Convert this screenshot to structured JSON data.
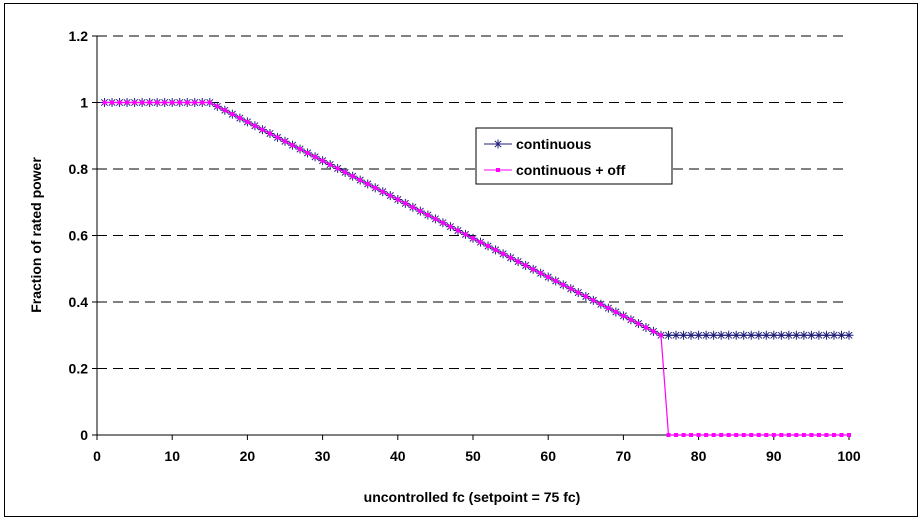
{
  "chart_data": {
    "type": "line",
    "title": "",
    "xlabel": "uncontrolled fc (setpoint = 75 fc)",
    "ylabel": "Fraction of rated power",
    "xlim": [
      0,
      100
    ],
    "ylim": [
      0,
      1.2
    ],
    "x_ticks": [
      0,
      10,
      20,
      30,
      40,
      50,
      60,
      70,
      80,
      90,
      100
    ],
    "y_ticks": [
      0,
      0.2,
      0.4,
      0.6,
      0.8,
      1,
      1.2
    ],
    "x_tick_labels": [
      "0",
      "10",
      "20",
      "30",
      "40",
      "50",
      "60",
      "70",
      "80",
      "90",
      "100"
    ],
    "y_tick_labels": [
      "0",
      "0.2",
      "0.4",
      "0.6",
      "0.8",
      "1",
      "1.2"
    ],
    "grid": "horizontal dashed",
    "legend_position": "upper-right",
    "x_range": [
      1,
      100
    ],
    "series": [
      {
        "name": "continuous",
        "color": "#1f1f7a",
        "marker": "asterisk",
        "description_points": [
          [
            1,
            1.0
          ],
          [
            15,
            1.0
          ],
          [
            75,
            0.3
          ],
          [
            100,
            0.3
          ]
        ]
      },
      {
        "name": "continuous + off",
        "color": "#ff00ff",
        "marker": "square",
        "description_points": [
          [
            1,
            1.0
          ],
          [
            15,
            1.0
          ],
          [
            75,
            0.3
          ],
          [
            76,
            0.0
          ],
          [
            100,
            0.0
          ]
        ]
      }
    ]
  }
}
